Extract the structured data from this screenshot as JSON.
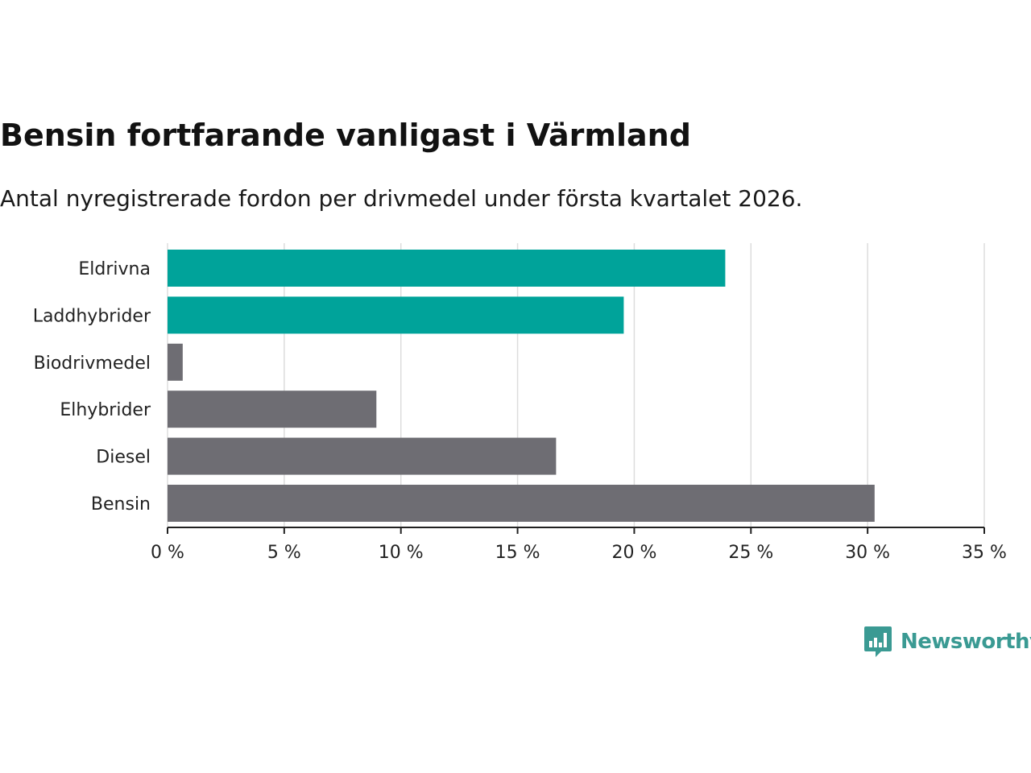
{
  "header": {
    "title": "Bensin fortfarande vanligast i Värmland",
    "subtitle": "Antal nyregistrerade fordon per drivmedel under första kvartalet 2026."
  },
  "brand": {
    "name": "Newsworthy",
    "color": "#3a9a93"
  },
  "colors": {
    "highlight": "#00a39a",
    "default": "#6e6d73",
    "grid": "#dddddd",
    "axis": "#222222"
  },
  "chart_data": {
    "type": "bar",
    "orientation": "horizontal",
    "title": "Bensin fortfarande vanligast i Värmland",
    "subtitle": "Antal nyregistrerade fordon per drivmedel under första kvartalet 2026.",
    "xlabel": "",
    "ylabel": "",
    "categories": [
      "Eldrivna",
      "Laddhybrider",
      "Biodrivmedel",
      "Elhybrider",
      "Diesel",
      "Bensin"
    ],
    "values": [
      23.9,
      19.55,
      0.65,
      8.95,
      16.65,
      30.3
    ],
    "highlighted": [
      true,
      true,
      false,
      false,
      false,
      false
    ],
    "xlim": [
      0,
      35
    ],
    "ticks": [
      0,
      5,
      10,
      15,
      20,
      25,
      30,
      35
    ],
    "tick_labels": [
      "0 %",
      "5 %",
      "10 %",
      "15 %",
      "20 %",
      "25 %",
      "30 %",
      "35 %"
    ],
    "grid": true
  }
}
